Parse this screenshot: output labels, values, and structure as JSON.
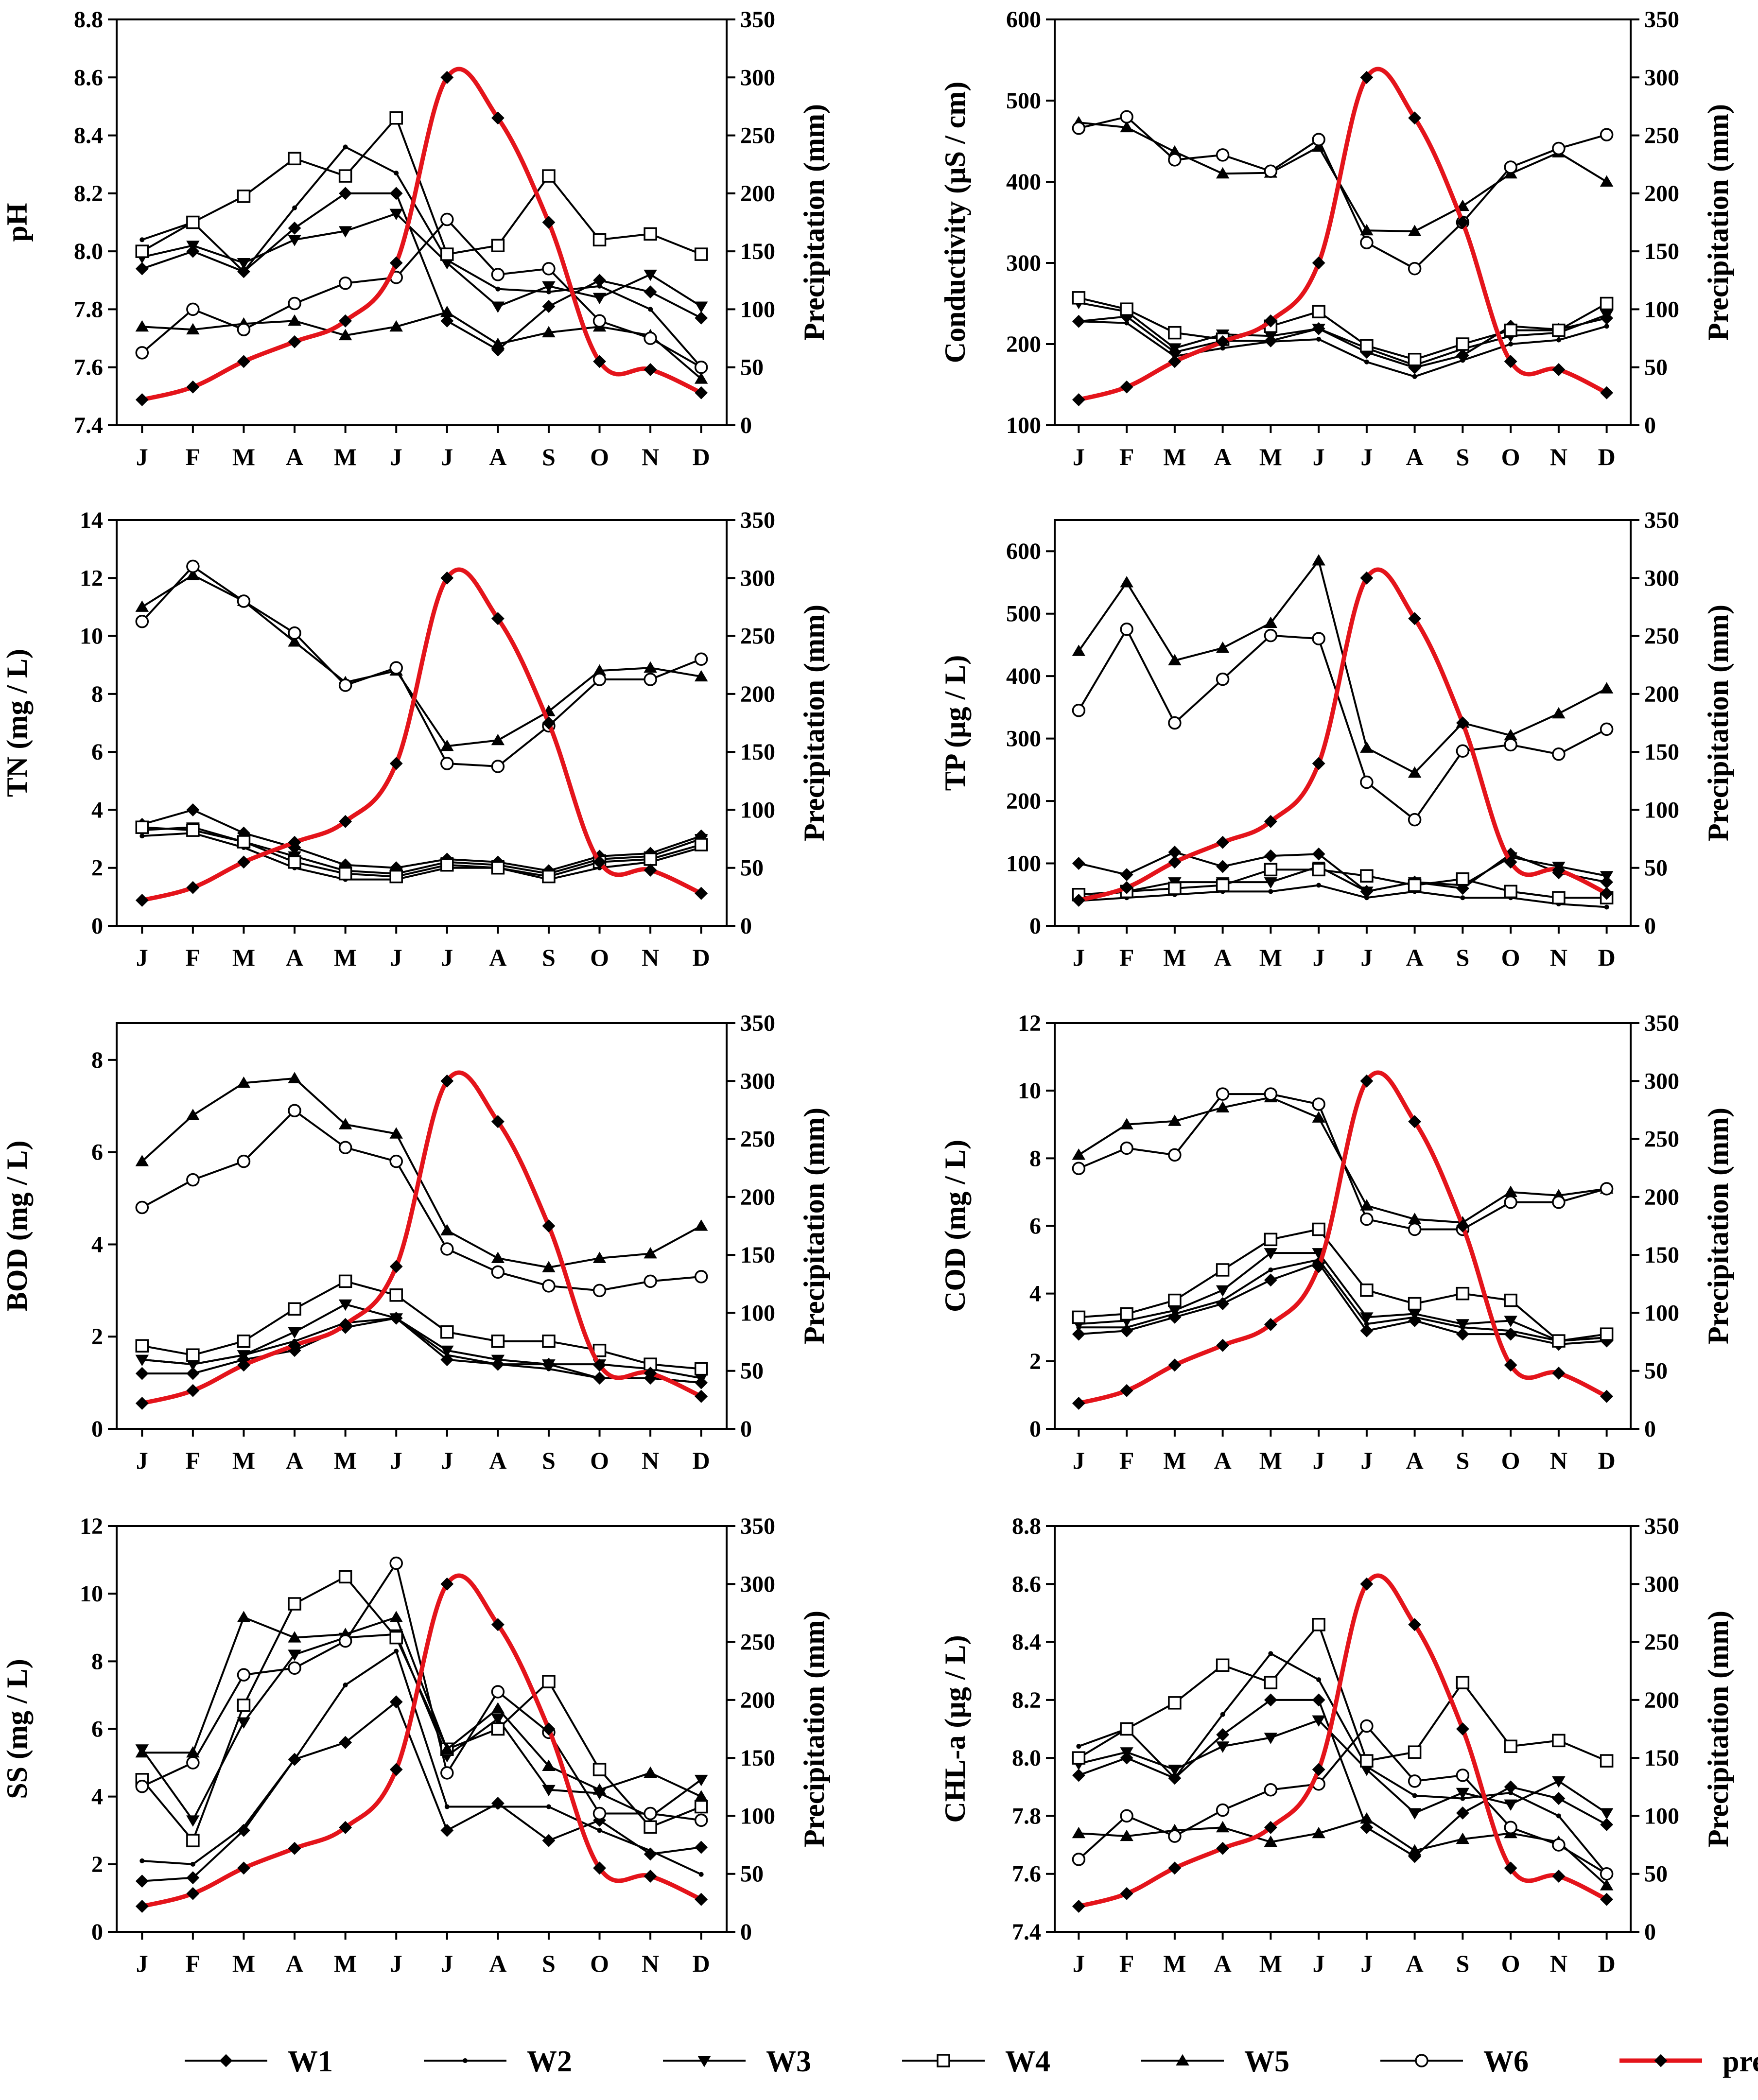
{
  "months": [
    "J",
    "F",
    "M",
    "A",
    "M",
    "J",
    "J",
    "A",
    "S",
    "O",
    "N",
    "D"
  ],
  "precip_axis": {
    "label": "Precipitation (mm)",
    "ylim": [
      0,
      350
    ],
    "ticks": [
      0,
      50,
      100,
      150,
      200,
      250,
      300,
      350
    ]
  },
  "colors": {
    "series": "#000000",
    "precipitation": "#e4141b"
  },
  "precipitation": [
    22,
    33,
    55,
    72,
    90,
    140,
    300,
    265,
    175,
    55,
    48,
    28
  ],
  "legend": [
    {
      "name": "W1",
      "marker": "diamond"
    },
    {
      "name": "W2",
      "marker": "dot"
    },
    {
      "name": "W3",
      "marker": "triangle-down"
    },
    {
      "name": "W4",
      "marker": "square"
    },
    {
      "name": "W5",
      "marker": "triangle-up"
    },
    {
      "name": "W6",
      "marker": "circle"
    },
    {
      "name": "precipitation",
      "marker": "diamond"
    }
  ],
  "chart_data": [
    {
      "type": "line",
      "ylabel": "pH",
      "ylim": [
        7.4,
        8.8
      ],
      "yticks": [
        "7.4",
        "7.6",
        "7.8",
        "8.0",
        "8.2",
        "8.4",
        "8.6",
        "8.8"
      ],
      "series": [
        {
          "name": "W1",
          "values": [
            7.94,
            8.0,
            7.93,
            8.08,
            8.2,
            8.2,
            7.76,
            7.66,
            7.81,
            7.9,
            7.86,
            7.77
          ]
        },
        {
          "name": "W2",
          "values": [
            8.04,
            8.1,
            7.93,
            8.15,
            8.36,
            8.27,
            7.97,
            7.87,
            7.86,
            7.88,
            7.8,
            7.6
          ]
        },
        {
          "name": "W3",
          "values": [
            7.98,
            8.02,
            7.96,
            8.04,
            8.07,
            8.13,
            7.96,
            7.81,
            7.88,
            7.84,
            7.92,
            7.81
          ]
        },
        {
          "name": "W4",
          "values": [
            8.0,
            8.1,
            8.19,
            8.32,
            8.26,
            8.46,
            7.99,
            8.02,
            8.26,
            8.04,
            8.06,
            7.99
          ]
        },
        {
          "name": "W5",
          "values": [
            7.74,
            7.73,
            7.75,
            7.76,
            7.71,
            7.74,
            7.79,
            7.68,
            7.72,
            7.74,
            7.71,
            7.56
          ]
        },
        {
          "name": "W6",
          "values": [
            7.65,
            7.8,
            7.73,
            7.82,
            7.89,
            7.91,
            8.11,
            7.92,
            7.94,
            7.76,
            7.7,
            7.6
          ]
        }
      ]
    },
    {
      "type": "line",
      "ylabel": "Conductivity (µS / cm)",
      "ylim": [
        100,
        600
      ],
      "yticks": [
        "100",
        "200",
        "300",
        "400",
        "500",
        "600"
      ],
      "series": [
        {
          "name": "W1",
          "values": [
            228,
            234,
            190,
            204,
            204,
            219,
            190,
            171,
            186,
            222,
            218,
            232
          ]
        },
        {
          "name": "W2",
          "values": [
            228,
            226,
            185,
            195,
            203,
            206,
            178,
            160,
            180,
            200,
            205,
            222
          ]
        },
        {
          "name": "W3",
          "values": [
            251,
            240,
            195,
            212,
            210,
            219,
            195,
            174,
            194,
            210,
            214,
            236
          ]
        },
        {
          "name": "W4",
          "values": [
            257,
            243,
            214,
            206,
            222,
            240,
            198,
            181,
            200,
            217,
            217,
            250
          ]
        },
        {
          "name": "W5",
          "values": [
            473,
            467,
            437,
            410,
            411,
            443,
            340,
            339,
            370,
            410,
            436,
            400
          ]
        },
        {
          "name": "W6",
          "values": [
            466,
            480,
            427,
            433,
            413,
            452,
            325,
            293,
            350,
            418,
            441,
            458
          ]
        }
      ]
    },
    {
      "type": "line",
      "ylabel": "TN (mg / L)",
      "ylim": [
        0,
        14
      ],
      "yticks": [
        "0",
        "2",
        "4",
        "6",
        "8",
        "10",
        "12",
        "14"
      ],
      "series": [
        {
          "name": "W1",
          "values": [
            3.5,
            4.0,
            3.2,
            2.7,
            2.1,
            2.0,
            2.3,
            2.2,
            1.9,
            2.4,
            2.5,
            3.1
          ]
        },
        {
          "name": "W2",
          "values": [
            3.1,
            3.2,
            2.7,
            2.0,
            1.6,
            1.6,
            2.0,
            2.0,
            1.6,
            2.0,
            2.2,
            2.7
          ]
        },
        {
          "name": "W3",
          "values": [
            3.3,
            3.4,
            2.9,
            2.4,
            1.9,
            1.8,
            2.2,
            2.1,
            1.8,
            2.3,
            2.4,
            3.0
          ]
        },
        {
          "name": "W4",
          "values": [
            3.4,
            3.3,
            2.9,
            2.2,
            1.8,
            1.7,
            2.1,
            2.0,
            1.7,
            2.2,
            2.3,
            2.8
          ]
        },
        {
          "name": "W5",
          "values": [
            11.0,
            12.1,
            11.2,
            9.8,
            8.4,
            8.8,
            6.2,
            6.4,
            7.4,
            8.8,
            8.9,
            8.6
          ]
        },
        {
          "name": "W6",
          "values": [
            10.5,
            12.4,
            11.2,
            10.1,
            8.3,
            8.9,
            5.6,
            5.5,
            6.9,
            8.5,
            8.5,
            9.2
          ]
        }
      ]
    },
    {
      "type": "line",
      "ylabel": "TP (µg / L)",
      "ylim": [
        0,
        650
      ],
      "yticks": [
        "0",
        "100",
        "200",
        "300",
        "400",
        "500",
        "600"
      ],
      "series": [
        {
          "name": "W1",
          "values": [
            100,
            82,
            118,
            95,
            112,
            115,
            55,
            70,
            60,
            115,
            85,
            70
          ]
        },
        {
          "name": "W2",
          "values": [
            40,
            45,
            50,
            55,
            55,
            65,
            45,
            55,
            45,
            45,
            35,
            30
          ]
        },
        {
          "name": "W3",
          "values": [
            45,
            55,
            70,
            70,
            70,
            95,
            55,
            70,
            65,
            110,
            95,
            80
          ]
        },
        {
          "name": "W4",
          "values": [
            50,
            55,
            60,
            65,
            90,
            90,
            80,
            65,
            75,
            55,
            45,
            45
          ]
        },
        {
          "name": "W5",
          "values": [
            440,
            550,
            425,
            445,
            485,
            585,
            285,
            245,
            325,
            305,
            340,
            380
          ]
        },
        {
          "name": "W6",
          "values": [
            345,
            475,
            325,
            395,
            465,
            460,
            230,
            170,
            280,
            290,
            275,
            315
          ]
        }
      ]
    },
    {
      "type": "line",
      "ylabel": "BOD (mg / L)",
      "ylim": [
        0,
        8.8
      ],
      "yticks": [
        "0",
        "2",
        "4",
        "6",
        "8"
      ],
      "series": [
        {
          "name": "W1",
          "values": [
            1.2,
            1.2,
            1.5,
            1.7,
            2.2,
            2.4,
            1.5,
            1.4,
            1.4,
            1.1,
            1.1,
            1.0
          ]
        },
        {
          "name": "W2",
          "values": [
            1.5,
            1.4,
            1.6,
            1.9,
            2.3,
            2.4,
            1.6,
            1.4,
            1.3,
            1.1,
            1.1,
            1.0
          ]
        },
        {
          "name": "W3",
          "values": [
            1.5,
            1.4,
            1.6,
            2.1,
            2.7,
            2.4,
            1.7,
            1.5,
            1.4,
            1.4,
            1.3,
            1.1
          ]
        },
        {
          "name": "W4",
          "values": [
            1.8,
            1.6,
            1.9,
            2.6,
            3.2,
            2.9,
            2.1,
            1.9,
            1.9,
            1.7,
            1.4,
            1.3
          ]
        },
        {
          "name": "W5",
          "values": [
            5.8,
            6.8,
            7.5,
            7.6,
            6.6,
            6.4,
            4.3,
            3.7,
            3.5,
            3.7,
            3.8,
            4.4
          ]
        },
        {
          "name": "W6",
          "values": [
            4.8,
            5.4,
            5.8,
            6.9,
            6.1,
            5.8,
            3.9,
            3.4,
            3.1,
            3.0,
            3.2,
            3.3
          ]
        }
      ]
    },
    {
      "type": "line",
      "ylabel": "COD (mg / L)",
      "ylim": [
        0,
        12
      ],
      "yticks": [
        "0",
        "2",
        "4",
        "6",
        "8",
        "10",
        "12"
      ],
      "series": [
        {
          "name": "W1",
          "values": [
            2.8,
            2.9,
            3.3,
            3.7,
            4.4,
            4.9,
            2.9,
            3.2,
            2.8,
            2.8,
            2.5,
            2.6
          ]
        },
        {
          "name": "W2",
          "values": [
            3.0,
            3.0,
            3.4,
            3.8,
            4.7,
            5.0,
            3.1,
            3.3,
            3.0,
            2.9,
            2.6,
            2.7
          ]
        },
        {
          "name": "W3",
          "values": [
            3.1,
            3.2,
            3.5,
            4.1,
            5.2,
            5.2,
            3.3,
            3.4,
            3.1,
            3.2,
            2.6,
            2.7
          ]
        },
        {
          "name": "W4",
          "values": [
            3.3,
            3.4,
            3.8,
            4.7,
            5.6,
            5.9,
            4.1,
            3.7,
            4.0,
            3.8,
            2.6,
            2.8
          ]
        },
        {
          "name": "W5",
          "values": [
            8.1,
            9.0,
            9.1,
            9.5,
            9.8,
            9.2,
            6.6,
            6.2,
            6.1,
            7.0,
            6.9,
            7.1
          ]
        },
        {
          "name": "W6",
          "values": [
            7.7,
            8.3,
            8.1,
            9.9,
            9.9,
            9.6,
            6.2,
            5.9,
            5.9,
            6.7,
            6.7,
            7.1
          ]
        }
      ]
    },
    {
      "type": "line",
      "ylabel": "SS (mg / L)",
      "ylim": [
        0,
        12
      ],
      "yticks": [
        "0",
        "2",
        "4",
        "6",
        "8",
        "10",
        "12"
      ],
      "series": [
        {
          "name": "W1",
          "values": [
            1.5,
            1.6,
            3.0,
            5.1,
            5.6,
            6.8,
            3.0,
            3.8,
            2.7,
            3.3,
            2.3,
            2.5
          ]
        },
        {
          "name": "W2",
          "values": [
            2.1,
            2.0,
            3.1,
            5.1,
            7.3,
            8.3,
            3.7,
            3.7,
            3.7,
            3.0,
            2.4,
            1.7
          ]
        },
        {
          "name": "W3",
          "values": [
            5.4,
            3.3,
            6.2,
            8.2,
            8.7,
            8.8,
            5.2,
            6.3,
            4.2,
            4.1,
            3.4,
            4.5
          ]
        },
        {
          "name": "W4",
          "values": [
            4.5,
            2.7,
            6.7,
            9.7,
            10.5,
            8.7,
            5.4,
            6.0,
            7.4,
            4.8,
            3.1,
            3.7
          ]
        },
        {
          "name": "W5",
          "values": [
            5.3,
            5.3,
            9.3,
            8.7,
            8.8,
            9.3,
            5.4,
            6.6,
            4.9,
            4.2,
            4.7,
            4.0
          ]
        },
        {
          "name": "W6",
          "values": [
            4.3,
            5.0,
            7.6,
            7.8,
            8.6,
            10.9,
            4.7,
            7.1,
            5.9,
            3.5,
            3.5,
            3.3
          ]
        }
      ]
    },
    {
      "type": "line",
      "ylabel": "CHL-a (µg / L)",
      "ylim": [
        7.4,
        8.8
      ],
      "yticks": [
        "7.4",
        "7.6",
        "7.8",
        "8.0",
        "8.2",
        "8.4",
        "8.6",
        "8.8"
      ],
      "series": [
        {
          "name": "W1",
          "values": [
            7.94,
            8.0,
            7.93,
            8.08,
            8.2,
            8.2,
            7.76,
            7.66,
            7.81,
            7.9,
            7.86,
            7.77
          ]
        },
        {
          "name": "W2",
          "values": [
            8.04,
            8.1,
            7.93,
            8.15,
            8.36,
            8.27,
            7.97,
            7.87,
            7.86,
            7.88,
            7.8,
            7.6
          ]
        },
        {
          "name": "W3",
          "values": [
            7.98,
            8.02,
            7.96,
            8.04,
            8.07,
            8.13,
            7.96,
            7.81,
            7.88,
            7.84,
            7.92,
            7.81
          ]
        },
        {
          "name": "W4",
          "values": [
            8.0,
            8.1,
            8.19,
            8.32,
            8.26,
            8.46,
            7.99,
            8.02,
            8.26,
            8.04,
            8.06,
            7.99
          ]
        },
        {
          "name": "W5",
          "values": [
            7.74,
            7.73,
            7.75,
            7.76,
            7.71,
            7.74,
            7.79,
            7.68,
            7.72,
            7.74,
            7.71,
            7.56
          ]
        },
        {
          "name": "W6",
          "values": [
            7.65,
            7.8,
            7.73,
            7.82,
            7.89,
            7.91,
            8.11,
            7.92,
            7.94,
            7.76,
            7.7,
            7.6
          ]
        }
      ]
    }
  ]
}
